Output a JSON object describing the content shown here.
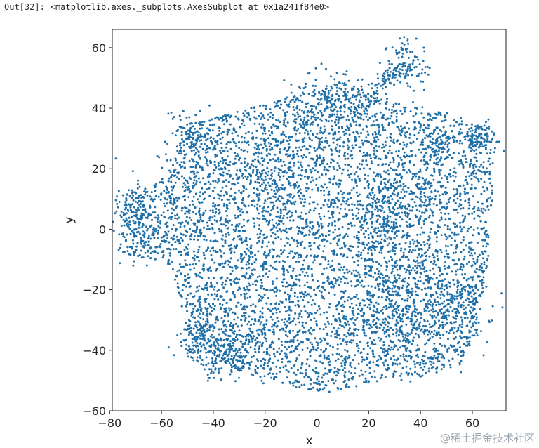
{
  "cell": {
    "prompt": "Out[32]:",
    "text": "<matplotlib.axes._subplots.AxesSubplot at 0x1a241f84e0>"
  },
  "chart_data": {
    "type": "scatter",
    "xlabel": "x",
    "ylabel": "y",
    "xlim": [
      -79,
      73
    ],
    "ylim": [
      -60,
      66
    ],
    "xticks": [
      -80,
      -60,
      -40,
      -20,
      0,
      20,
      40,
      60
    ],
    "yticks": [
      -60,
      -40,
      -20,
      0,
      20,
      40,
      60
    ],
    "tick_labels_x": [
      "−80",
      "−60",
      "−40",
      "−20",
      "0",
      "20",
      "40",
      "60"
    ],
    "tick_labels_y": [
      "−60",
      "−40",
      "−20",
      "0",
      "20",
      "40",
      "60"
    ],
    "grid": false,
    "point_color": "#1f6fa8",
    "approx_point_count": 9000,
    "clusters": [
      {
        "cx": 5,
        "cy": 42,
        "rx": 9,
        "ry": 5,
        "n": 180
      },
      {
        "cx": 34,
        "cy": 55,
        "rx": 4,
        "ry": 4,
        "n": 110
      },
      {
        "cx": -48,
        "cy": 28,
        "rx": 6,
        "ry": 6,
        "n": 140
      },
      {
        "cx": -70,
        "cy": 4,
        "rx": 5,
        "ry": 7,
        "n": 150
      },
      {
        "cx": 62,
        "cy": 30,
        "rx": 4,
        "ry": 3,
        "n": 90
      },
      {
        "cx": 47,
        "cy": 28,
        "rx": 3,
        "ry": 3,
        "n": 60
      },
      {
        "cx": 35,
        "cy": -28,
        "rx": 10,
        "ry": 8,
        "n": 260
      },
      {
        "cx": -35,
        "cy": -40,
        "rx": 7,
        "ry": 5,
        "n": 170
      },
      {
        "cx": 25,
        "cy": 5,
        "rx": 8,
        "ry": 7,
        "n": 180
      },
      {
        "cx": -15,
        "cy": 20,
        "rx": 10,
        "ry": 8,
        "n": 200
      },
      {
        "cx": 55,
        "cy": -25,
        "rx": 6,
        "ry": 8,
        "n": 130
      },
      {
        "cx": -45,
        "cy": -35,
        "rx": 4,
        "ry": 4,
        "n": 80
      }
    ]
  },
  "watermark": "@稀土掘金技术社区"
}
